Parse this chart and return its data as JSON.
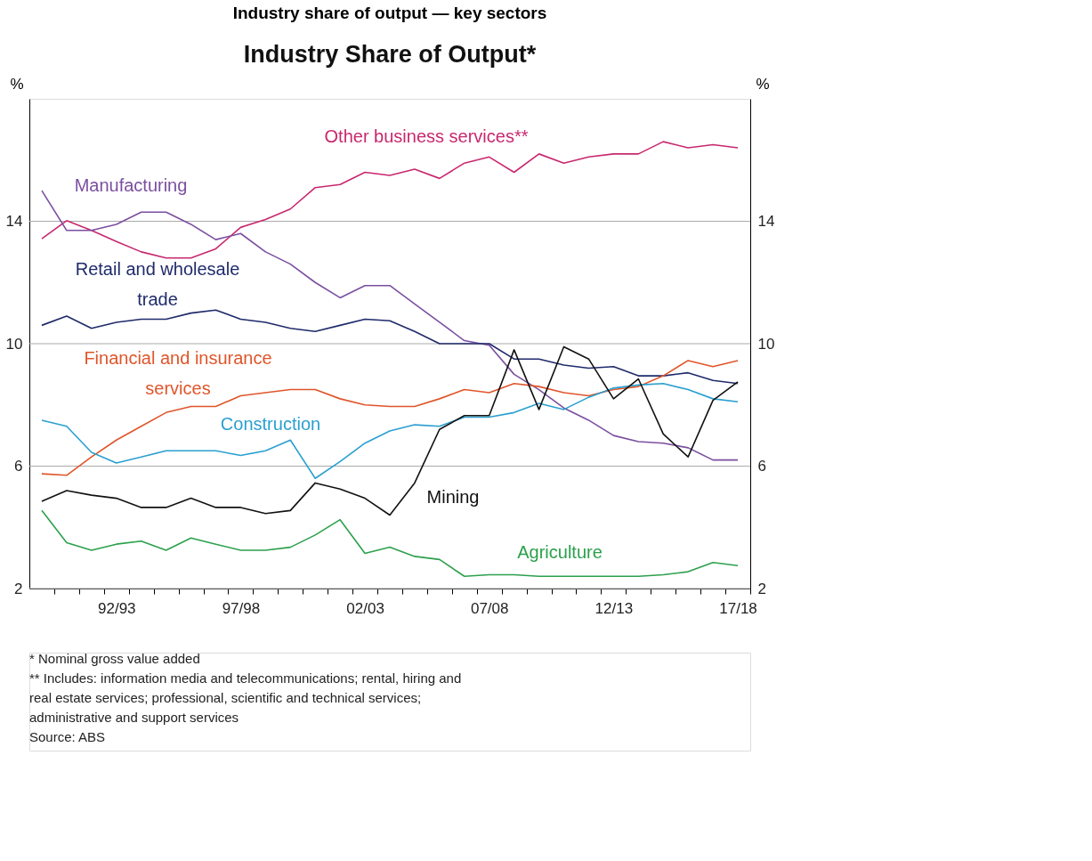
{
  "chart_data": {
    "type": "line",
    "title": "Industry share of output — key sectors",
    "subtitle": "Industry Share of Output*",
    "ylabel": "%",
    "y2label": "%",
    "categories": [
      null,
      null,
      null,
      "92/93",
      null,
      null,
      null,
      null,
      "97/98",
      null,
      null,
      null,
      null,
      "02/03",
      null,
      null,
      null,
      null,
      "07/08",
      null,
      null,
      null,
      null,
      "12/13",
      null,
      null,
      null,
      null,
      "17/18"
    ],
    "ylim": [
      2,
      18
    ],
    "yticks": [
      2,
      6,
      10,
      14
    ],
    "y2lim": [
      2,
      18
    ],
    "y2ticks": [
      2,
      6,
      10,
      14
    ],
    "grid": "y",
    "legend": false,
    "line_style": "solid",
    "series": [
      {
        "name": "Other business services**",
        "color": "#c8286e",
        "values": [
          13.43,
          14.02,
          13.7,
          13.34,
          13.0,
          12.8,
          12.8,
          13.1,
          13.8,
          14.06,
          14.4,
          15.1,
          15.2,
          15.6,
          15.5,
          15.7,
          15.4,
          15.9,
          16.1,
          15.6,
          16.2,
          15.9,
          16.1,
          16.2,
          16.2,
          16.6,
          16.4,
          16.5,
          16.4
        ]
      },
      {
        "name": "Manufacturing",
        "color": "#7b4fa0",
        "values": [
          15.0,
          13.7,
          13.7,
          13.9,
          14.3,
          14.3,
          13.9,
          13.4,
          13.6,
          13.0,
          12.6,
          12.0,
          11.5,
          11.9,
          11.9,
          11.3,
          10.7,
          10.1,
          9.95,
          9.0,
          8.5,
          7.9,
          7.5,
          7.0,
          6.8,
          6.75,
          6.6,
          6.2,
          6.2
        ]
      },
      {
        "name": "Retail and wholesale trade",
        "color": "#1f2a6b",
        "values": [
          10.6,
          10.9,
          10.5,
          10.7,
          10.8,
          10.8,
          11.0,
          11.1,
          10.8,
          10.7,
          10.5,
          10.4,
          10.6,
          10.8,
          10.75,
          10.4,
          10.0,
          10.0,
          10.0,
          9.5,
          9.5,
          9.3,
          9.2,
          9.25,
          8.95,
          8.95,
          9.05,
          8.8,
          8.7
        ]
      },
      {
        "name": "Financial and insurance services",
        "color": "#e0552a",
        "values": [
          5.75,
          5.7,
          6.3,
          6.85,
          7.3,
          7.75,
          7.95,
          7.95,
          8.3,
          8.4,
          8.5,
          8.5,
          8.2,
          8.0,
          7.95,
          7.95,
          8.2,
          8.5,
          8.4,
          8.7,
          8.6,
          8.4,
          8.3,
          8.5,
          8.6,
          8.95,
          9.45,
          9.25,
          9.45
        ]
      },
      {
        "name": "Construction",
        "color": "#2a9fd0",
        "values": [
          7.5,
          7.3,
          6.45,
          6.1,
          6.3,
          6.5,
          6.5,
          6.5,
          6.35,
          6.5,
          6.85,
          5.6,
          6.15,
          6.75,
          7.15,
          7.35,
          7.3,
          7.6,
          7.6,
          7.75,
          8.05,
          7.85,
          8.25,
          8.55,
          8.65,
          8.7,
          8.5,
          8.2,
          8.1
        ]
      },
      {
        "name": "Mining",
        "color": "#111111",
        "values": [
          4.85,
          5.2,
          5.05,
          4.95,
          4.65,
          4.65,
          4.95,
          4.65,
          4.65,
          4.45,
          4.55,
          5.45,
          5.25,
          4.95,
          4.4,
          5.45,
          7.2,
          7.65,
          7.65,
          9.8,
          7.85,
          9.9,
          9.5,
          8.2,
          8.85,
          7.05,
          6.3,
          8.15,
          8.75
        ]
      },
      {
        "name": "Agriculture",
        "color": "#2ca04c",
        "values": [
          4.55,
          3.5,
          3.25,
          3.45,
          3.55,
          3.25,
          3.65,
          3.45,
          3.25,
          3.25,
          3.35,
          3.75,
          4.25,
          3.15,
          3.35,
          3.05,
          2.95,
          2.4,
          2.45,
          2.45,
          2.4,
          2.4,
          2.4,
          2.4,
          2.4,
          2.45,
          2.55,
          2.85,
          2.75
        ]
      }
    ],
    "annotations": [
      "*   Nominal gross value added",
      "**  Includes: information media and telecommunications; rental, hiring and real estate services; professional, scientific and technical services; administrative and support services",
      "Source:  ABS"
    ]
  }
}
